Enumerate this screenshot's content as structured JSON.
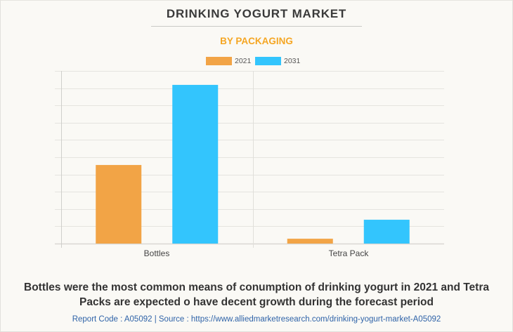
{
  "header": {
    "title": "DRINKING YOGURT MARKET",
    "subtitle": "BY PACKAGING"
  },
  "chart_data": {
    "type": "bar",
    "title": "DRINKING YOGURT MARKET",
    "subtitle": "BY PACKAGING",
    "categories": [
      "Bottles",
      "Tetra Pack"
    ],
    "series": [
      {
        "name": "2021",
        "color": "#f2a446",
        "values": [
          4.55,
          0.28
        ]
      },
      {
        "name": "2031",
        "color": "#33c5fd",
        "values": [
          9.19,
          1.38
        ]
      }
    ],
    "xlabel": "",
    "ylabel": "",
    "ylim": [
      0,
      10
    ],
    "y_tick_labels_shown": false,
    "grid": true,
    "legend": "top-center"
  },
  "footer": {
    "caption": "Bottles were the most common means of conumption of drinking yogurt in 2021 and Tetra Packs are expected o have decent growth during the forecast period",
    "source_text": "Report Code : A05092  |  Source : https://www.alliedmarketresearch.com/drinking-yogurt-market-A05092"
  }
}
